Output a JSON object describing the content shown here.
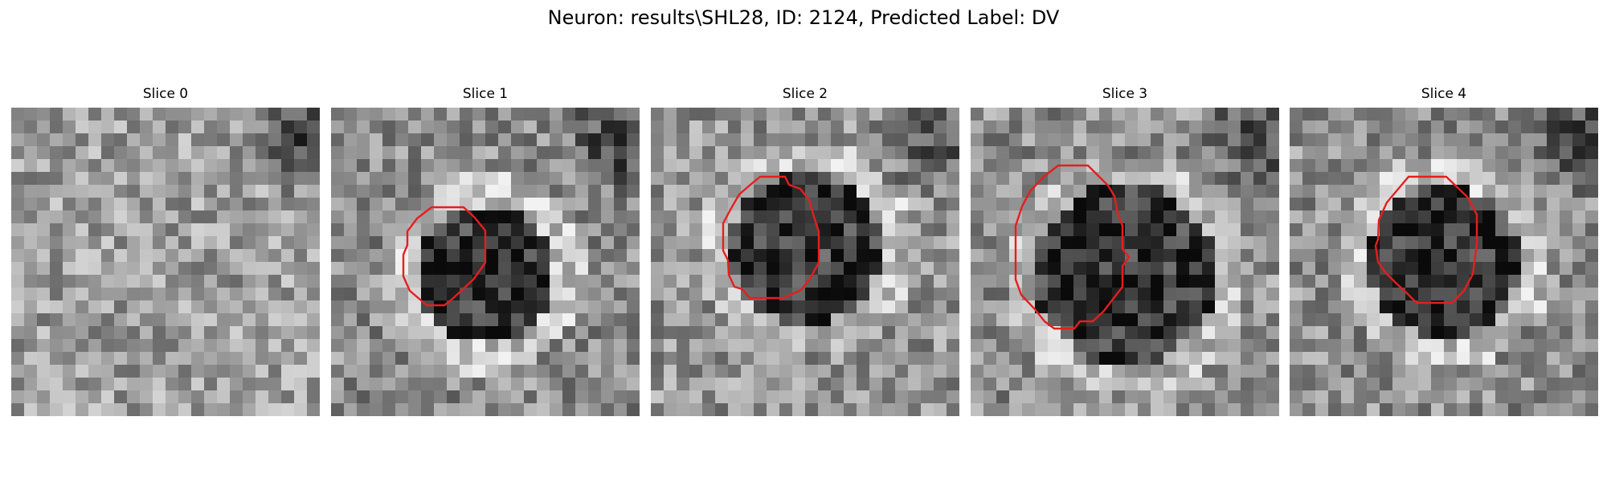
{
  "figure": {
    "title": "Neuron: results\\SHL28, ID: 2124, Predicted Label: DV",
    "contour_color": "#e61e1e"
  },
  "slices": [
    {
      "title": "Slice 0",
      "has_contour": false
    },
    {
      "title": "Slice 1",
      "has_contour": true
    },
    {
      "title": "Slice 2",
      "has_contour": true
    },
    {
      "title": "Slice 3",
      "has_contour": true
    },
    {
      "title": "Slice 4",
      "has_contour": true
    }
  ]
}
